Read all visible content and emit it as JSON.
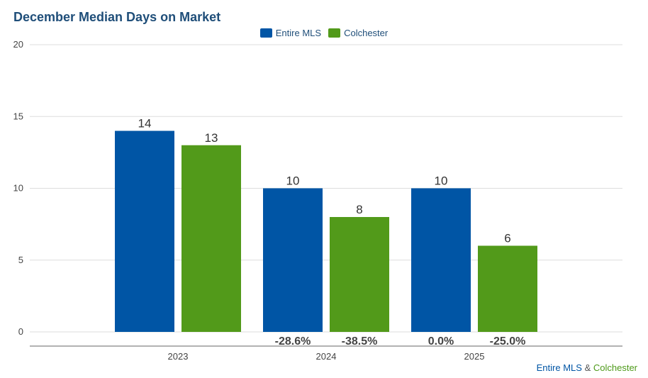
{
  "title": "December Median Days on Market",
  "colors": {
    "entire": "#0055a5",
    "colchester": "#529a1a",
    "title": "#1f4e79"
  },
  "legend": [
    {
      "label": "Entire MLS",
      "color": "#0055a5"
    },
    {
      "label": "Colchester",
      "color": "#529a1a"
    }
  ],
  "footer": {
    "series1": "Entire MLS",
    "amp": "&",
    "series2": "Colchester"
  },
  "chart_data": {
    "type": "bar",
    "title": "December Median Days on Market",
    "categories": [
      "2023",
      "2024",
      "2025"
    ],
    "series": [
      {
        "name": "Entire MLS",
        "values": [
          14,
          10,
          10
        ],
        "changes": [
          "",
          "-28.6%",
          "0.0%"
        ]
      },
      {
        "name": "Colchester",
        "values": [
          13,
          8,
          6
        ],
        "changes": [
          "",
          "-38.5%",
          "-25.0%"
        ]
      }
    ],
    "ylim": [
      0,
      20
    ],
    "yticks": [
      0,
      5,
      10,
      15,
      20
    ],
    "xlabel": "",
    "ylabel": "",
    "legend_position": "top-center",
    "grid": true
  }
}
